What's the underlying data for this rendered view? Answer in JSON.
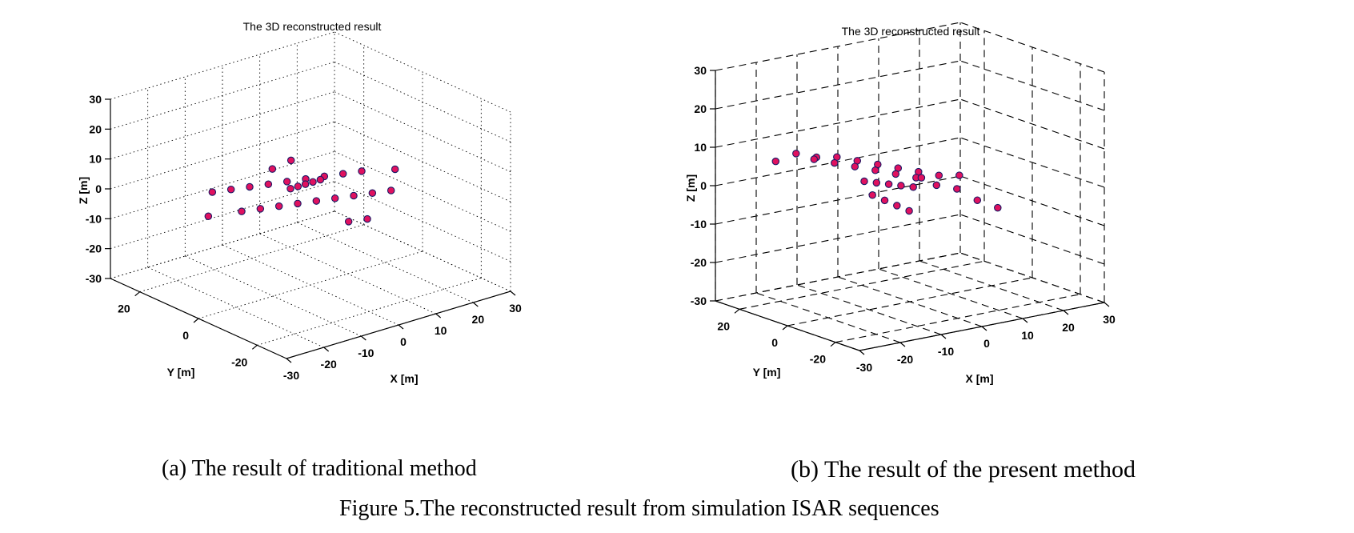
{
  "figure_caption": "Figure 5.The reconstructed result from simulation ISAR sequences",
  "panels": [
    {
      "caption": "(a) The result of traditional method"
    },
    {
      "caption": "(b) The result of the present method"
    }
  ],
  "colors": {
    "marker_fill": "#e0115f",
    "marker_edge": "#1a1a66",
    "grid": "#000000"
  },
  "chart_data": [
    {
      "type": "scatter",
      "title": "The 3D reconstructed result",
      "xlabel": "X [m]",
      "ylabel": "Y [m]",
      "zlabel": "Z [m]",
      "xlim": [
        -30,
        30
      ],
      "ylim": [
        -30,
        30
      ],
      "zlim": [
        -30,
        30
      ],
      "xticks": [
        -30,
        -20,
        -10,
        0,
        10,
        20,
        30
      ],
      "yticks": [
        -20,
        0,
        20
      ],
      "zticks": [
        -30,
        -20,
        -10,
        0,
        10,
        20,
        30
      ],
      "grid": true,
      "grid_style": "dotted",
      "points": [
        {
          "x": -20,
          "y": 8,
          "z": 5
        },
        {
          "x": -15,
          "y": 8,
          "z": 4
        },
        {
          "x": -10,
          "y": 8,
          "z": 3
        },
        {
          "x": -5,
          "y": 8,
          "z": 2
        },
        {
          "x": 0,
          "y": 8,
          "z": 1
        },
        {
          "x": 5,
          "y": 8,
          "z": 0
        },
        {
          "x": 10,
          "y": 8,
          "z": -1
        },
        {
          "x": 15,
          "y": 8,
          "z": -2
        },
        {
          "x": 20,
          "y": 8,
          "z": -3
        },
        {
          "x": -20,
          "y": -2,
          "z": 3
        },
        {
          "x": -15,
          "y": -2,
          "z": 2
        },
        {
          "x": -10,
          "y": -2,
          "z": 1
        },
        {
          "x": -5,
          "y": -2,
          "z": 0
        },
        {
          "x": 0,
          "y": -2,
          "z": -1
        },
        {
          "x": 5,
          "y": -2,
          "z": -2
        },
        {
          "x": 10,
          "y": -2,
          "z": -3
        },
        {
          "x": 15,
          "y": -2,
          "z": -4
        },
        {
          "x": 20,
          "y": -2,
          "z": -5
        },
        {
          "x": -3,
          "y": 3,
          "z": 2
        },
        {
          "x": -1,
          "y": 3,
          "z": 2
        },
        {
          "x": 1,
          "y": 3,
          "z": 2
        },
        {
          "x": 3,
          "y": 3,
          "z": 2
        },
        {
          "x": 5,
          "y": 3,
          "z": 2
        },
        {
          "x": -25,
          "y": 3,
          "z": 1
        },
        {
          "x": 25,
          "y": 3,
          "z": -2
        },
        {
          "x": 0,
          "y": 13,
          "z": 3
        },
        {
          "x": 0,
          "y": -13,
          "z": -3
        },
        {
          "x": 5,
          "y": 13,
          "z": 4
        },
        {
          "x": 5,
          "y": -13,
          "z": -4
        }
      ]
    },
    {
      "type": "scatter",
      "title": "The 3D reconstructed result",
      "xlabel": "X [m]",
      "ylabel": "Y [m]",
      "zlabel": "Z [m]",
      "xlim": [
        -30,
        30
      ],
      "ylim": [
        -30,
        30
      ],
      "zlim": [
        -30,
        30
      ],
      "xticks": [
        -30,
        -20,
        -10,
        0,
        10,
        20,
        30
      ],
      "yticks": [
        -20,
        0,
        20
      ],
      "zticks": [
        -30,
        -20,
        -10,
        0,
        10,
        20,
        30
      ],
      "grid": true,
      "grid_style": "dashed",
      "points": [
        {
          "x": -27,
          "y": 10,
          "z": 10
        },
        {
          "x": -22,
          "y": 10,
          "z": 11
        },
        {
          "x": -17,
          "y": 10,
          "z": 9
        },
        {
          "x": -12,
          "y": 10,
          "z": 8
        },
        {
          "x": -7,
          "y": 10,
          "z": 6
        },
        {
          "x": -2,
          "y": 10,
          "z": 4
        },
        {
          "x": 3,
          "y": 10,
          "z": 2
        },
        {
          "x": 8,
          "y": 10,
          "z": 0
        },
        {
          "x": 13,
          "y": 10,
          "z": -2
        },
        {
          "x": 18,
          "y": 10,
          "z": -3
        },
        {
          "x": -27,
          "y": -6,
          "z": 14
        },
        {
          "x": -22,
          "y": -6,
          "z": 12
        },
        {
          "x": -17,
          "y": -6,
          "z": 10
        },
        {
          "x": -12,
          "y": -6,
          "z": 8
        },
        {
          "x": -7,
          "y": -6,
          "z": 6
        },
        {
          "x": -2,
          "y": -6,
          "z": 4
        },
        {
          "x": 3,
          "y": -6,
          "z": 1
        },
        {
          "x": 8,
          "y": -6,
          "z": -1
        },
        {
          "x": 13,
          "y": -6,
          "z": -5
        },
        {
          "x": 18,
          "y": -6,
          "z": -8
        },
        {
          "x": -10,
          "y": 2,
          "z": 3
        },
        {
          "x": -7,
          "y": 2,
          "z": 2
        },
        {
          "x": -4,
          "y": 2,
          "z": 1
        },
        {
          "x": -1,
          "y": 2,
          "z": 0
        },
        {
          "x": 2,
          "y": 2,
          "z": -1
        },
        {
          "x": -8,
          "y": 2,
          "z": -1
        },
        {
          "x": -5,
          "y": 2,
          "z": -3
        },
        {
          "x": -2,
          "y": 2,
          "z": -5
        },
        {
          "x": 1,
          "y": 2,
          "z": -7
        },
        {
          "x": 4,
          "y": 2,
          "z": 1
        }
      ]
    }
  ]
}
